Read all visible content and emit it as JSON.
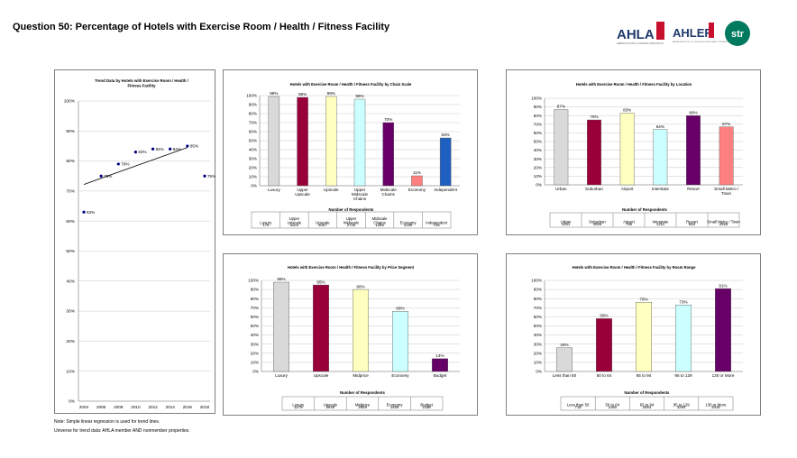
{
  "title": "Question 50: Percentage of Hotels with Exercise Room / Health / Fitness Facility",
  "logos": {
    "ahla": "AHLA",
    "ahla_sub": "AMERICAN HOTEL & LODGING ASSOCIATION",
    "ahlef": "AHLEF",
    "ahlef_sub": "AMERICAN HOTEL & LODGING EDUCATIONAL FOUNDATION",
    "str": "str"
  },
  "notes": [
    "Note: Simple linear regression is used for trend lines.",
    "Universe for trend data: AHLA member AND nonmember properties."
  ],
  "colors": {
    "light_gray": "#d9d9d9",
    "crimson": "#99003a",
    "light_yellow": "#ffffbf",
    "light_cyan": "#ccffff",
    "purple": "#660066",
    "salmon": "#ff8080",
    "blue": "#1f5fbf",
    "navy": "#000080"
  },
  "chart_data": [
    {
      "id": "trend",
      "type": "scatter",
      "title": "Trend Data by Hotels with Exercise Room / Health / Fitness Facility",
      "title_lines": [
        "Trend Data by Hotels with Exercise Room / Health /",
        "Fitness Facility"
      ],
      "x": [
        2004,
        2006,
        2008,
        2010,
        2012,
        2014,
        2016,
        2018
      ],
      "values": [
        63,
        75,
        79,
        83,
        84,
        84,
        85,
        75
      ],
      "labels": [
        "63%",
        "75%",
        "79%",
        "83%",
        "84%",
        "84%",
        "85%",
        "75%"
      ],
      "xticks": [
        "2004",
        "2006",
        "2008",
        "2010",
        "2012",
        "2014",
        "2016",
        "2018"
      ],
      "yticks": [
        "0%",
        "10%",
        "20%",
        "30%",
        "40%",
        "50%",
        "60%",
        "70%",
        "80%",
        "90%",
        "100%"
      ],
      "ylim": [
        0,
        100
      ],
      "trendline": [
        72.2,
        84.5
      ],
      "color": "#000080"
    },
    {
      "id": "chain-scale",
      "type": "bar",
      "title": "Hotels with Exercise Room / Health / Fitness Facility by Chain Scale",
      "categories": [
        "Luxury",
        "Upper Upscale",
        "Upscale",
        "Upper Midscale Chains",
        "Midscale Chains",
        "Economy",
        "Independent"
      ],
      "category_lines": [
        [
          "Luxury"
        ],
        [
          "Upper",
          "Upscale"
        ],
        [
          "Upscale"
        ],
        [
          "Upper",
          "Midscale",
          "Chains"
        ],
        [
          "Midscale",
          "Chains"
        ],
        [
          "Economy"
        ],
        [
          "Independent"
        ]
      ],
      "values": [
        99,
        98,
        99,
        96,
        70,
        11,
        53
      ],
      "labels": [
        "99%",
        "98%",
        "99%",
        "96%",
        "70%",
        "11%",
        "53%"
      ],
      "colors": [
        "#d9d9d9",
        "#99003a",
        "#ffffbf",
        "#ccffff",
        "#660066",
        "#ff8080",
        "#1f5fbf"
      ],
      "yticks": [
        "0%",
        "10%",
        "20%",
        "30%",
        "40%",
        "50%",
        "60%",
        "70%",
        "80%",
        "90%",
        "100%"
      ],
      "ylim": [
        0,
        100
      ],
      "respondents_title": "Number of Respondents",
      "respondents": [
        {
          "name": [
            "Luxury"
          ],
          "n": "176"
        },
        {
          "name": [
            "Upper",
            "Upscale"
          ],
          "n": "1103"
        },
        {
          "name": [
            "Upscale"
          ],
          "n": "3057"
        },
        {
          "name": [
            "Upper",
            "Midscale"
          ],
          "n": "2725"
        },
        {
          "name": [
            "Midscale",
            "Chains"
          ],
          "n": "1286"
        },
        {
          "name": [
            "Economy"
          ],
          "n": "2199"
        },
        {
          "name": [
            "Independent"
          ],
          "n": "726"
        }
      ]
    },
    {
      "id": "location",
      "type": "bar",
      "title": "Hotels with Exercise Room / Health / Fitness Facility by Location",
      "categories": [
        "Urban",
        "Suburban",
        "Airport",
        "Interstate",
        "Resort",
        "Small Metro / Town"
      ],
      "category_lines": [
        [
          "Urban"
        ],
        [
          "Suburban"
        ],
        [
          "Airport"
        ],
        [
          "Interstate"
        ],
        [
          "Resort"
        ],
        [
          "Small Metro /",
          "Town"
        ]
      ],
      "values": [
        87,
        75,
        83,
        64,
        80,
        67
      ],
      "labels": [
        "87%",
        "75%",
        "83%",
        "64%",
        "80%",
        "67%"
      ],
      "colors": [
        "#d9d9d9",
        "#99003a",
        "#ffffbf",
        "#ccffff",
        "#660066",
        "#ff8080"
      ],
      "yticks": [
        "0%",
        "10%",
        "20%",
        "30%",
        "40%",
        "50%",
        "60%",
        "70%",
        "80%",
        "90%",
        "100%"
      ],
      "ylim": [
        0,
        100
      ],
      "respondents_title": "Number of Respondents",
      "respondents": [
        {
          "name": [
            "Urban"
          ],
          "n": "1061"
        },
        {
          "name": [
            "Suburban"
          ],
          "n": "4506"
        },
        {
          "name": [
            "Airport"
          ],
          "n": "795"
        },
        {
          "name": [
            "Interstate"
          ],
          "n": "1311"
        },
        {
          "name": [
            "Resort"
          ],
          "n": "663"
        },
        {
          "name": [
            "Small Metro / Town"
          ],
          "n": "2928"
        }
      ]
    },
    {
      "id": "price-segment",
      "type": "bar",
      "title": "Hotels with Exercise Room / Health / Fitness Facility by Price Segment",
      "categories": [
        "Luxury",
        "Upscale",
        "Midprice",
        "Economy",
        "Budget"
      ],
      "category_lines": [
        [
          "Luxury"
        ],
        [
          "Upscale"
        ],
        [
          "Midprice"
        ],
        [
          "Economy"
        ],
        [
          "Budget"
        ]
      ],
      "values": [
        98,
        95,
        90,
        66,
        14
      ],
      "labels": [
        "98%",
        "95%",
        "90%",
        "66%",
        "14%"
      ],
      "colors": [
        "#d9d9d9",
        "#99003a",
        "#ffffbf",
        "#ccffff",
        "#660066"
      ],
      "yticks": [
        "0%",
        "10%",
        "20%",
        "30%",
        "40%",
        "50%",
        "60%",
        "70%",
        "80%",
        "90%",
        "100%"
      ],
      "ylim": [
        0,
        100
      ],
      "respondents_title": "Number of Respondents",
      "respondents": [
        {
          "name": [
            "Luxury"
          ],
          "n": "1279"
        },
        {
          "name": [
            "Upscale"
          ],
          "n": "2649"
        },
        {
          "name": [
            "Midprice"
          ],
          "n": "2929"
        },
        {
          "name": [
            "Economy"
          ],
          "n": "1406"
        },
        {
          "name": [
            "Budget"
          ],
          "n": "2118"
        }
      ]
    },
    {
      "id": "room-range",
      "type": "bar",
      "title": "Hotels with Exercise Room / Health / Fitness Facility by Room Range",
      "categories": [
        "Less than 50",
        "50 to 64",
        "65 to 94",
        "95 to 129",
        "130 or More"
      ],
      "category_lines": [
        [
          "Less than 50"
        ],
        [
          "50 to 64"
        ],
        [
          "65 to 94"
        ],
        [
          "95 to 129"
        ],
        [
          "130 or More"
        ]
      ],
      "values": [
        26,
        58,
        76,
        73,
        91
      ],
      "labels": [
        "26%",
        "58%",
        "76%",
        "73%",
        "91%"
      ],
      "colors": [
        "#d9d9d9",
        "#99003a",
        "#ffffbf",
        "#ccffff",
        "#660066"
      ],
      "yticks": [
        "0%",
        "10%",
        "20%",
        "30%",
        "40%",
        "50%",
        "60%",
        "70%",
        "80%",
        "90%",
        "100%"
      ],
      "ylim": [
        0,
        100
      ],
      "respondents_title": "Number of Respondents",
      "respondents": [
        {
          "name": [
            "Less than 50"
          ],
          "n": "715"
        },
        {
          "name": [
            "50 to 64"
          ],
          "n": "1166"
        },
        {
          "name": [
            "65 to 94"
          ],
          "n": "2691"
        },
        {
          "name": [
            "95 to 129"
          ],
          "n": "3294"
        },
        {
          "name": [
            "130 or More"
          ],
          "n": "3416"
        }
      ]
    }
  ]
}
